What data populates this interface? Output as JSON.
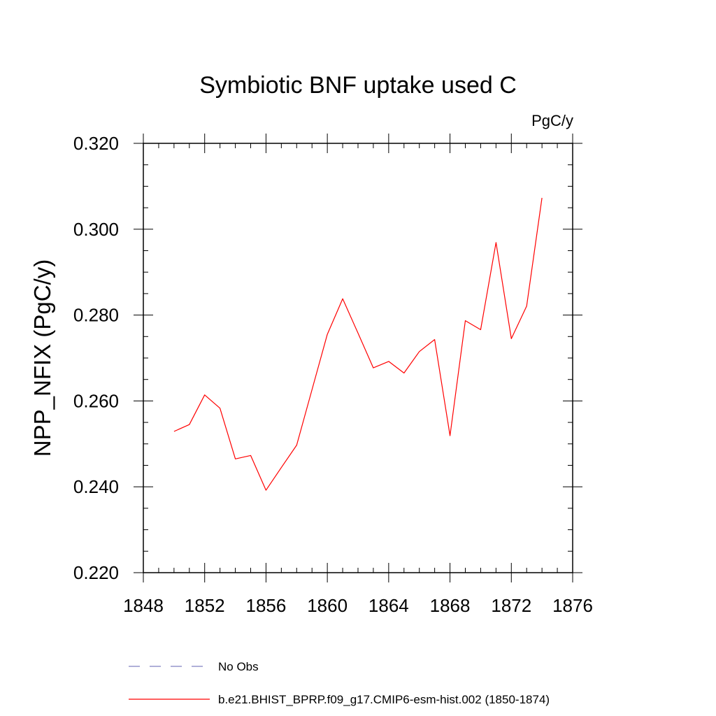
{
  "chart_data": {
    "type": "line",
    "title": "Symbiotic BNF uptake used C",
    "units_label": "PgC/y",
    "ylabel": "NPP_NFIX  (PgC/y)",
    "xlabel": "",
    "xlim": [
      1848,
      1876
    ],
    "ylim": [
      0.22,
      0.32
    ],
    "x_ticks": [
      "1848",
      "1852",
      "1856",
      "1860",
      "1864",
      "1868",
      "1872",
      "1876"
    ],
    "y_ticks": [
      "0.220",
      "0.240",
      "0.260",
      "0.280",
      "0.300",
      "0.320"
    ],
    "series": [
      {
        "name": "b.e21.BHIST_BPRP.f09_g17.CMIP6-esm-hist.002 (1850-1874)",
        "color": "#ff0000",
        "x": [
          1850,
          1851,
          1852,
          1853,
          1854,
          1855,
          1856,
          1857,
          1858,
          1859,
          1860,
          1861,
          1862,
          1863,
          1864,
          1865,
          1866,
          1867,
          1868,
          1869,
          1870,
          1871,
          1872,
          1873,
          1874
        ],
        "y": [
          0.2529,
          0.2545,
          0.2614,
          0.2583,
          0.2465,
          0.2473,
          0.2392,
          0.2445,
          0.2497,
          0.2626,
          0.2755,
          0.2838,
          0.2758,
          0.2677,
          0.2692,
          0.2665,
          0.2715,
          0.2743,
          0.2519,
          0.2787,
          0.2766,
          0.2969,
          0.2745,
          0.2821,
          0.3073
        ]
      }
    ],
    "legend": [
      {
        "label": "No Obs",
        "style": "dashed",
        "color": "#8080c0"
      },
      {
        "label": "b.e21.BHIST_BPRP.f09_g17.CMIP6-esm-hist.002 (1850-1874)",
        "style": "solid",
        "color": "#ff0000"
      }
    ],
    "legend_position": "bottom",
    "grid": false
  }
}
